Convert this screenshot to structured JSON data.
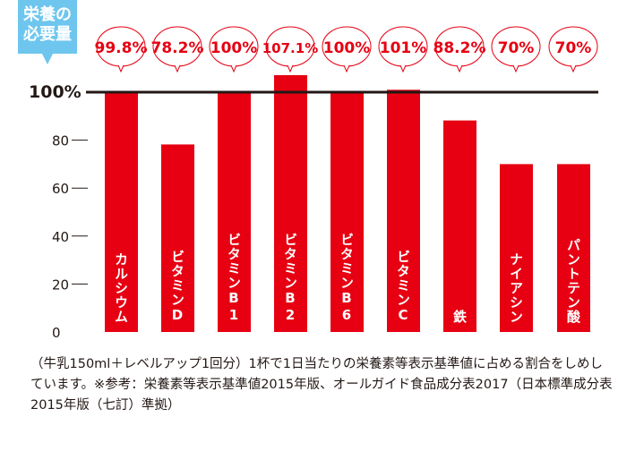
{
  "badge": "栄養の必要量",
  "chart_data": {
    "type": "bar",
    "categories": [
      "カルシウム",
      "ビタミンD",
      "ビタミンB1",
      "ビタミンB2",
      "ビタミンB6",
      "ビタミンC",
      "鉄",
      "ナイアシン",
      "パントテン酸"
    ],
    "values": [
      99.8,
      78.2,
      100,
      107.1,
      100,
      101,
      88.2,
      70,
      70
    ],
    "data_labels": [
      "99.8%",
      "78.2%",
      "100%",
      "107.1%",
      "100%",
      "101%",
      "88.2%",
      "70%",
      "70%"
    ],
    "ylim": [
      0,
      100
    ],
    "yticks": [
      "0",
      "20",
      "40",
      "60",
      "80",
      "100%"
    ],
    "reference_line": 100,
    "bar_color": "#e60012",
    "grid": false
  },
  "note": "（牛乳150ml＋レベルアップ1回分）1杯で1日当たりの栄養素等表示基準値に占める割合をしめしています。※参考：栄養素等表示基準値2015年版、オールガイド食品成分表2017（日本標準成分表2015年版（七訂）準拠）"
}
